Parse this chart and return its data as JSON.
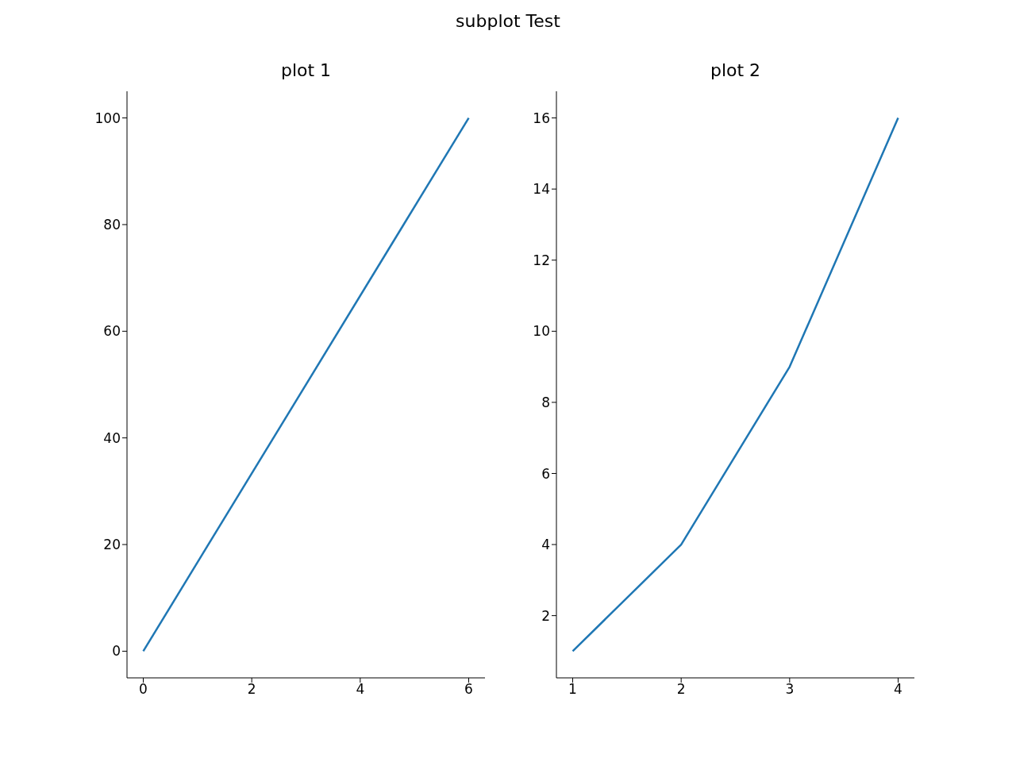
{
  "chart_data": [
    {
      "type": "line",
      "title": "plot 1",
      "annotations": [
        "subplot Test"
      ],
      "x": [
        0,
        6
      ],
      "values": [
        0,
        100
      ],
      "color": "#1f77b4",
      "xlim": [
        -0.3,
        6.3
      ],
      "xticks": [
        0,
        2,
        4,
        6
      ],
      "ylim": [
        -5,
        105
      ],
      "yticks": [
        0,
        20,
        40,
        60,
        80,
        100
      ]
    },
    {
      "type": "line",
      "title": "plot 2",
      "x": [
        1,
        2,
        3,
        4
      ],
      "values": [
        1,
        4,
        9,
        16
      ],
      "color": "#1f77b4",
      "xlim": [
        0.85,
        4.15
      ],
      "xticks": [
        1,
        2,
        3,
        4
      ],
      "ylim": [
        0.25,
        16.75
      ],
      "yticks": [
        2,
        4,
        6,
        8,
        10,
        12,
        14,
        16
      ]
    }
  ]
}
